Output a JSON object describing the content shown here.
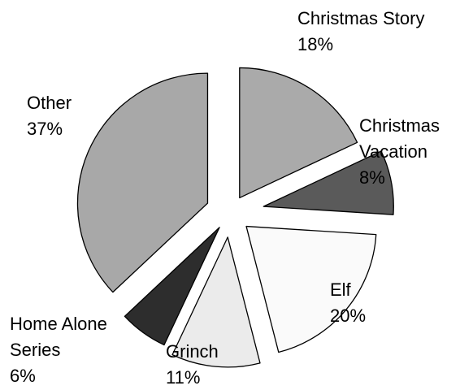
{
  "chart_data": {
    "type": "pie",
    "title": "",
    "slices": [
      {
        "label_lines": [
          "Christmas Story"
        ],
        "percent_label": "18%",
        "value": 18,
        "color": "#aaaaaa"
      },
      {
        "label_lines": [
          "Christmas",
          "Vacation"
        ],
        "percent_label": "8%",
        "value": 8,
        "color": "#5a5a5a"
      },
      {
        "label_lines": [
          "Elf"
        ],
        "percent_label": "20%",
        "value": 20,
        "color": "#fafafa"
      },
      {
        "label_lines": [
          "Grinch"
        ],
        "percent_label": "11%",
        "value": 11,
        "color": "#ebebeb"
      },
      {
        "label_lines": [
          "Home Alone",
          "Series"
        ],
        "percent_label": "6%",
        "value": 6,
        "color": "#2d2d2d"
      },
      {
        "label_lines": [
          "Other"
        ],
        "percent_label": "37%",
        "value": 37,
        "color": "#a8a8a8"
      }
    ],
    "exploded": true,
    "legend": "none"
  }
}
